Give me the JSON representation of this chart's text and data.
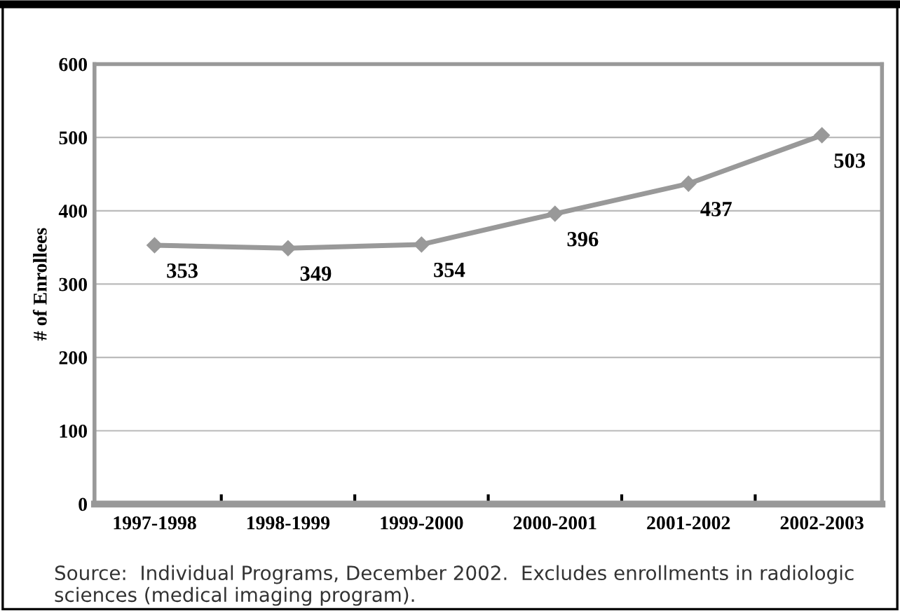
{
  "chart_data": {
    "type": "line",
    "ylabel": "# of Enrollees",
    "categories": [
      "1997-1998",
      "1998-1999",
      "1999-2000",
      "2000-2001",
      "2001-2002",
      "2002-2003"
    ],
    "series": [
      {
        "color": "#999999",
        "values": [
          353,
          349,
          354,
          396,
          437,
          503
        ]
      }
    ],
    "ylim": [
      0,
      600
    ],
    "yticks": [
      0,
      100,
      200,
      300,
      400,
      500,
      600
    ],
    "grid": "y",
    "marker": "diamond",
    "line_style": "solid",
    "data_labels": true,
    "legend": false,
    "annotations": [
      "Source:  Individual Programs, December 2002.  Excludes enrollments in radiologic sciences (medical imaging program)."
    ]
  }
}
